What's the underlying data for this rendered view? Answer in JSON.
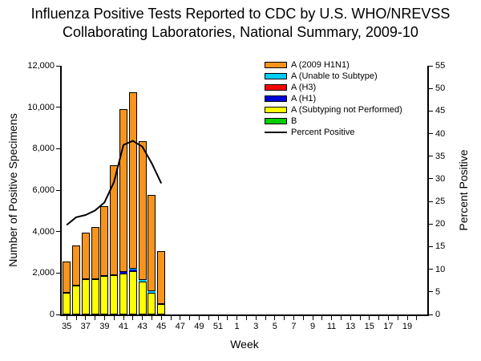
{
  "title": {
    "line1": "Influenza Positive Tests Reported to CDC by U.S. WHO/NREVSS",
    "line2": "Collaborating Laboratories, National Summary, 2009-10"
  },
  "legend": {
    "items": [
      {
        "label": "A (2009 H1N1)",
        "color": "#F7941D",
        "type": "box"
      },
      {
        "label": "A (Unable to Subtype)",
        "color": "#00CCFF",
        "type": "box"
      },
      {
        "label": "A (H3)",
        "color": "#FF0000",
        "type": "box"
      },
      {
        "label": "A (H1)",
        "color": "#0000DD",
        "type": "box"
      },
      {
        "label": "A (Subtyping not Performed)",
        "color": "#FFFF00",
        "type": "box"
      },
      {
        "label": "B",
        "color": "#00CE00",
        "type": "box"
      },
      {
        "label": "Percent Positive",
        "color": "#000000",
        "type": "line"
      }
    ]
  },
  "chart_data": {
    "type": "bar",
    "subtype": "stacked-bars-with-percent-line",
    "title": "Influenza Positive Tests Reported to CDC by U.S. WHO/NREVSS Collaborating Laboratories, National Summary, 2009-10",
    "xlabel": "Week",
    "ylabel_left": "Number of Positive Specimens",
    "ylabel_right": "Percent Positive",
    "ylim_left": [
      0,
      12000
    ],
    "ytick_step_left": 2000,
    "ylim_right": [
      0,
      55
    ],
    "ytick_step_right": 5,
    "grid": false,
    "legend_position": "top-right-inside",
    "x_categories": [
      "35",
      "36",
      "37",
      "38",
      "39",
      "40",
      "41",
      "42",
      "43",
      "44",
      "45",
      "46",
      "47",
      "48",
      "49",
      "50",
      "51",
      "52",
      "1",
      "2",
      "3",
      "4",
      "5",
      "6",
      "7",
      "8",
      "9",
      "10",
      "11",
      "12",
      "13",
      "14",
      "15",
      "16",
      "17",
      "18",
      "19",
      "20"
    ],
    "x_labeled_ticks": [
      "35",
      "37",
      "39",
      "41",
      "43",
      "45",
      "47",
      "49",
      "51",
      "1",
      "3",
      "5",
      "7",
      "9",
      "11",
      "13",
      "15",
      "17",
      "19"
    ],
    "bar_categories": [
      "35",
      "36",
      "37",
      "38",
      "39",
      "40",
      "41",
      "42",
      "43",
      "44",
      "45"
    ],
    "series": [
      {
        "name": "A (2009 H1N1)",
        "color": "#F7941D",
        "values": [
          1490,
          1940,
          2260,
          2530,
          3370,
          5300,
          7850,
          8510,
          6670,
          4660,
          2540
        ]
      },
      {
        "name": "A (Unable to Subtype)",
        "color": "#00CCFF",
        "values": [
          0,
          0,
          0,
          0,
          0,
          0,
          0,
          30,
          105,
          50,
          0
        ]
      },
      {
        "name": "A (H3)",
        "color": "#FF0000",
        "values": [
          0,
          0,
          0,
          0,
          0,
          0,
          0,
          0,
          0,
          0,
          0
        ]
      },
      {
        "name": "A (H1)",
        "color": "#0000DD",
        "values": [
          0,
          0,
          0,
          0,
          0,
          0,
          80,
          90,
          0,
          0,
          0
        ]
      },
      {
        "name": "A (Subtyping not Performed)",
        "color": "#FFFF00",
        "values": [
          1050,
          1400,
          1700,
          1690,
          1850,
          1900,
          1970,
          2100,
          1575,
          1060,
          520
        ]
      },
      {
        "name": "B",
        "color": "#00CE00",
        "values": [
          0,
          0,
          0,
          0,
          0,
          0,
          0,
          0,
          0,
          0,
          0
        ]
      }
    ],
    "stack_order_bottom_to_top": [
      "A (Subtyping not Performed)",
      "A (H1)",
      "A (Unable to Subtype)",
      "A (H3)",
      "B",
      "A (2009 H1N1)"
    ],
    "line_series": {
      "name": "Percent Positive",
      "color": "#000000",
      "axis": "right",
      "values": [
        19.8,
        21.5,
        22.0,
        23.0,
        24.8,
        29.3,
        37.5,
        38.4,
        37.1,
        33.4,
        29.0
      ]
    }
  }
}
